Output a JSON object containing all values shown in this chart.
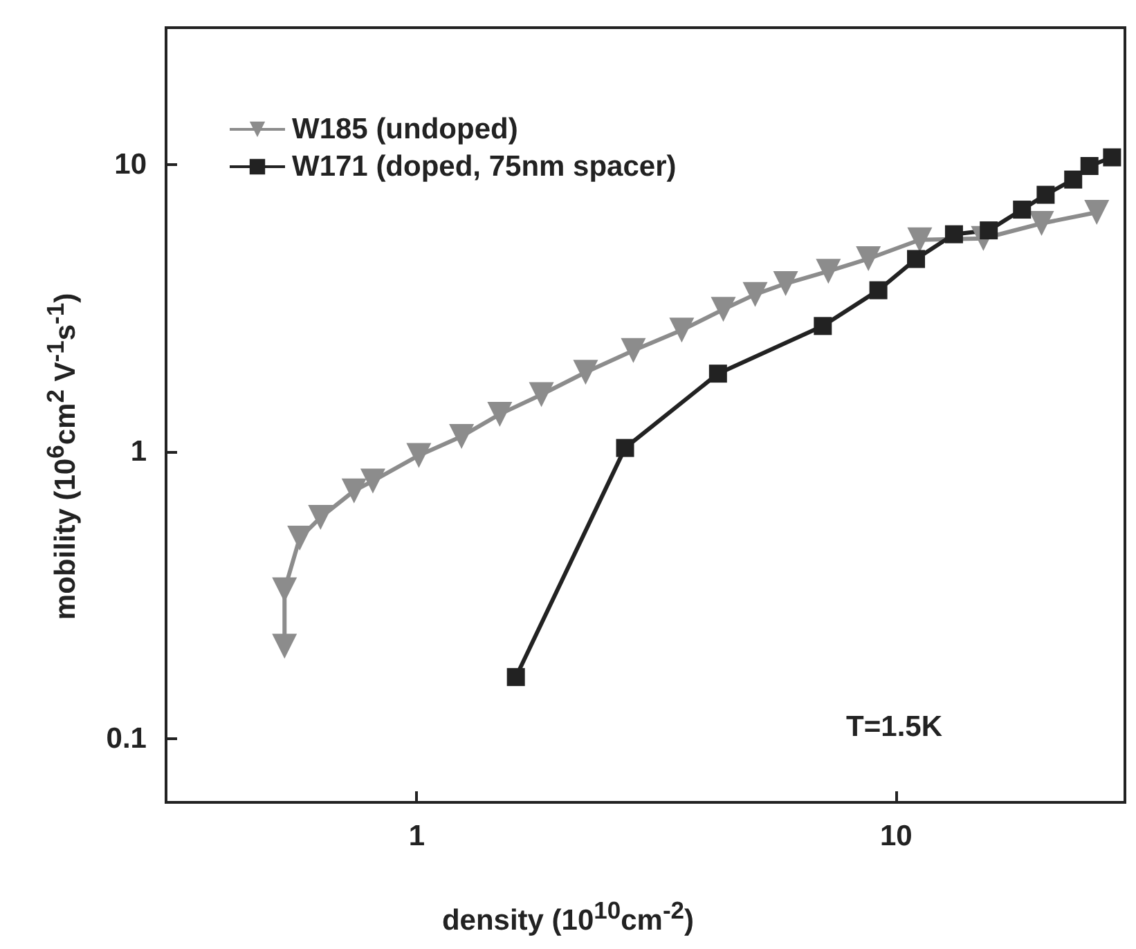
{
  "chart_data": {
    "type": "line",
    "xlabel": "density (10$^{10}$cm$^{-2}$)",
    "ylabel": "mobility (10$^{6}$cm$^{2}$ V$^{-1}$s$^{-1}$)",
    "log": "xy",
    "xlim": [
      0.3,
      30
    ],
    "ylim": [
      0.06,
      30
    ],
    "xticks": [
      1,
      10
    ],
    "yticks": [
      0.1,
      1,
      10
    ],
    "grid": false,
    "legend": "top left",
    "annotations": [
      "T=1.5K"
    ],
    "series": [
      {
        "name": "W185 (undoped)",
        "color": "#8c8c8c",
        "marker": "triangle",
        "x": [
          0.53,
          0.53,
          0.57,
          0.63,
          0.74,
          0.81,
          1.01,
          1.24,
          1.49,
          1.82,
          2.25,
          2.83,
          3.57,
          4.36,
          5.08,
          5.88,
          7.22,
          8.75,
          11.2,
          15.2,
          20.1,
          26.2
        ],
        "values": [
          0.21,
          0.33,
          0.5,
          0.59,
          0.73,
          0.79,
          0.97,
          1.13,
          1.35,
          1.58,
          1.89,
          2.25,
          2.65,
          3.13,
          3.53,
          3.85,
          4.25,
          4.7,
          5.47,
          5.53,
          6.24,
          6.82
        ]
      },
      {
        "name": "W171 (doped, 75nm spacer)",
        "color": "#222222",
        "marker": "square",
        "x": [
          1.61,
          2.72,
          4.25,
          7.03,
          9.18,
          11.0,
          13.2,
          15.6,
          18.3,
          20.5,
          23.4,
          25.3,
          28.2
        ],
        "values": [
          0.164,
          1.03,
          1.87,
          2.74,
          3.65,
          4.69,
          5.72,
          5.9,
          6.97,
          7.85,
          8.87,
          9.89,
          10.6
        ]
      }
    ]
  }
}
